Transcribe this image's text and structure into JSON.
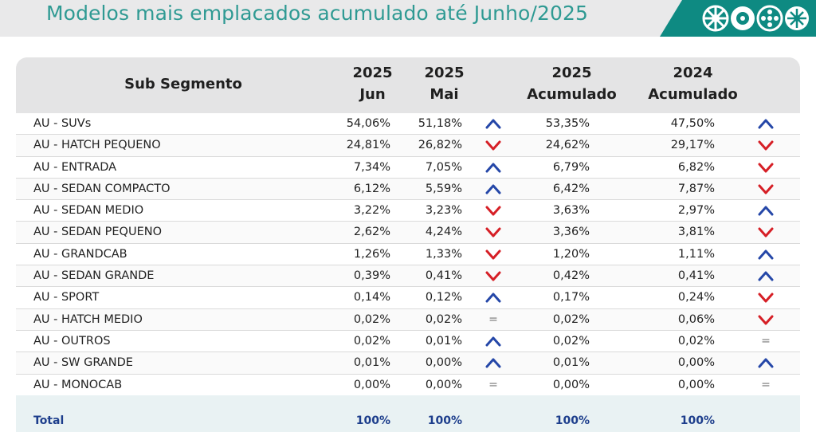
{
  "header": {
    "title": "Modelos mais emplacados acumulado até Junho/2025",
    "logo_icons": [
      "wheel-icon",
      "wheel-icon",
      "wheel-icon",
      "wheel-icon"
    ]
  },
  "table": {
    "columns": {
      "segment": "Sub Segmento",
      "jun_year": "2025",
      "jun_label": "Jun",
      "mai_year": "2025",
      "mai_label": "Mai",
      "acu25_year": "2025",
      "acu25_label": "Acumulado",
      "acu24_year": "2024",
      "acu24_label": "Acumulado"
    },
    "rows": [
      {
        "segment": "AU - SUVs",
        "jun": "54,06%",
        "mai": "51,18%",
        "trend_month": "up",
        "acu25": "53,35%",
        "acu24": "47,50%",
        "trend_year": "up"
      },
      {
        "segment": "AU - HATCH PEQUENO",
        "jun": "24,81%",
        "mai": "26,82%",
        "trend_month": "down",
        "acu25": "24,62%",
        "acu24": "29,17%",
        "trend_year": "down"
      },
      {
        "segment": "AU - ENTRADA",
        "jun": "7,34%",
        "mai": "7,05%",
        "trend_month": "up",
        "acu25": "6,79%",
        "acu24": "6,82%",
        "trend_year": "down"
      },
      {
        "segment": "AU - SEDAN COMPACTO",
        "jun": "6,12%",
        "mai": "5,59%",
        "trend_month": "up",
        "acu25": "6,42%",
        "acu24": "7,87%",
        "trend_year": "down"
      },
      {
        "segment": "AU - SEDAN MEDIO",
        "jun": "3,22%",
        "mai": "3,23%",
        "trend_month": "down",
        "acu25": "3,63%",
        "acu24": "2,97%",
        "trend_year": "up"
      },
      {
        "segment": "AU - SEDAN PEQUENO",
        "jun": "2,62%",
        "mai": "4,24%",
        "trend_month": "down",
        "acu25": "3,36%",
        "acu24": "3,81%",
        "trend_year": "down"
      },
      {
        "segment": "AU - GRANDCAB",
        "jun": "1,26%",
        "mai": "1,33%",
        "trend_month": "down",
        "acu25": "1,20%",
        "acu24": "1,11%",
        "trend_year": "up"
      },
      {
        "segment": "AU - SEDAN GRANDE",
        "jun": "0,39%",
        "mai": "0,41%",
        "trend_month": "down",
        "acu25": "0,42%",
        "acu24": "0,41%",
        "trend_year": "up"
      },
      {
        "segment": "AU - SPORT",
        "jun": "0,14%",
        "mai": "0,12%",
        "trend_month": "up",
        "acu25": "0,17%",
        "acu24": "0,24%",
        "trend_year": "down"
      },
      {
        "segment": "AU - HATCH MEDIO",
        "jun": "0,02%",
        "mai": "0,02%",
        "trend_month": "equal",
        "acu25": "0,02%",
        "acu24": "0,06%",
        "trend_year": "down"
      },
      {
        "segment": "AU - OUTROS",
        "jun": "0,02%",
        "mai": "0,01%",
        "trend_month": "up",
        "acu25": "0,02%",
        "acu24": "0,02%",
        "trend_year": "equal"
      },
      {
        "segment": "AU - SW GRANDE",
        "jun": "0,01%",
        "mai": "0,00%",
        "trend_month": "up",
        "acu25": "0,01%",
        "acu24": "0,00%",
        "trend_year": "up"
      },
      {
        "segment": "AU - MONOCAB",
        "jun": "0,00%",
        "mai": "0,00%",
        "trend_month": "equal",
        "acu25": "0,00%",
        "acu24": "0,00%",
        "trend_year": "equal"
      }
    ],
    "total": {
      "label": "Total",
      "jun": "100%",
      "mai": "100%",
      "acu25": "100%",
      "acu24": "100%"
    }
  },
  "colors": {
    "title": "#2f9a93",
    "brand": "#0e8a82",
    "up_arrow": "#2547a8",
    "down_arrow": "#d61f26",
    "total_text": "#1d3e8c"
  },
  "icons": {
    "up": "chevron-up-icon",
    "down": "chevron-down-icon",
    "equal": "equal-icon"
  },
  "equal_symbol": "="
}
